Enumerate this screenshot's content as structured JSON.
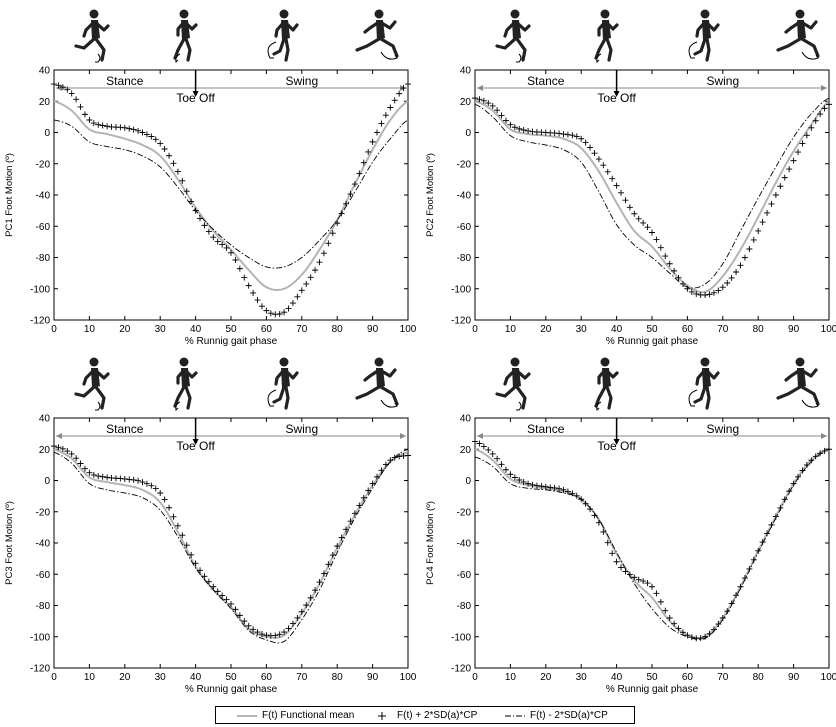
{
  "chart_data": [
    {
      "type": "line",
      "ylabel": "PC1 Foot Motion (º)",
      "xlabel": "% Runnig gait phase",
      "xlim": [
        0,
        100
      ],
      "ylim": [
        -120,
        40
      ],
      "xticks": [
        "0",
        "10",
        "20",
        "30",
        "40",
        "50",
        "60",
        "70",
        "80",
        "90",
        "100"
      ],
      "yticks": [
        "40",
        "20",
        "0",
        "-20",
        "-40",
        "-60",
        "-80",
        "-100",
        "-120"
      ],
      "phase_labels": {
        "stance": "Stance",
        "swing": "Swing",
        "toe_off": "Toe Off"
      },
      "toe_off_x": 40,
      "series": [
        {
          "name": "F(t) Functional mean",
          "style": "solid-gray",
          "x": [
            0,
            5,
            10,
            15,
            20,
            25,
            30,
            35,
            40,
            45,
            50,
            55,
            60,
            65,
            70,
            75,
            80,
            85,
            90,
            95,
            100
          ],
          "y": [
            20,
            14,
            2,
            -1,
            -4,
            -8,
            -15,
            -30,
            -48,
            -63,
            -75,
            -88,
            -99,
            -100,
            -91,
            -75,
            -56,
            -33,
            -11,
            8,
            20
          ]
        },
        {
          "name": "F(t) + 2*SD(a)*CP",
          "style": "plus",
          "x": [
            0,
            5,
            10,
            15,
            20,
            25,
            30,
            35,
            40,
            45,
            50,
            55,
            60,
            65,
            70,
            75,
            80,
            85,
            90,
            95,
            100
          ],
          "y": [
            31,
            25,
            8,
            4,
            3,
            0,
            -7,
            -25,
            -50,
            -67,
            -77,
            -98,
            -114,
            -115,
            -101,
            -83,
            -58,
            -33,
            -6,
            16,
            31
          ]
        },
        {
          "name": "F(t) - 2*SD(a)*CP",
          "style": "dashdot",
          "x": [
            0,
            5,
            10,
            15,
            20,
            25,
            30,
            35,
            40,
            45,
            50,
            55,
            60,
            65,
            70,
            75,
            80,
            85,
            90,
            95,
            100
          ],
          "y": [
            8,
            4,
            -6,
            -9,
            -11,
            -15,
            -22,
            -35,
            -50,
            -62,
            -72,
            -80,
            -86,
            -86,
            -80,
            -69,
            -56,
            -38,
            -19,
            -4,
            8
          ]
        }
      ]
    },
    {
      "type": "line",
      "ylabel": "PC2 Foot Motion (º)",
      "xlabel": "% Runnig gait phase",
      "xlim": [
        0,
        100
      ],
      "ylim": [
        -120,
        40
      ],
      "xticks": [
        "0",
        "10",
        "20",
        "30",
        "40",
        "50",
        "60",
        "70",
        "80",
        "90",
        "100"
      ],
      "yticks": [
        "40",
        "20",
        "0",
        "-20",
        "-40",
        "-60",
        "-80",
        "-100",
        "-120"
      ],
      "phase_labels": {
        "stance": "Stance",
        "swing": "Swing",
        "toe_off": "Toe Off"
      },
      "toe_off_x": 40,
      "series": [
        {
          "name": "F(t) Functional mean",
          "style": "solid-gray",
          "x": [
            0,
            5,
            10,
            15,
            20,
            25,
            30,
            35,
            40,
            45,
            50,
            55,
            60,
            65,
            70,
            75,
            80,
            85,
            90,
            95,
            100
          ],
          "y": [
            20,
            14,
            2,
            -1,
            -2,
            -4,
            -10,
            -25,
            -45,
            -63,
            -73,
            -87,
            -98,
            -102,
            -92,
            -75,
            -54,
            -32,
            -12,
            5,
            20
          ]
        },
        {
          "name": "F(t) + 2*SD(a)*CP",
          "style": "plus",
          "x": [
            0,
            5,
            10,
            15,
            20,
            25,
            30,
            35,
            40,
            45,
            50,
            55,
            60,
            65,
            70,
            75,
            80,
            85,
            90,
            95,
            100
          ],
          "y": [
            22,
            17,
            5,
            1,
            0,
            -1,
            -4,
            -17,
            -34,
            -52,
            -64,
            -84,
            -100,
            -104,
            -99,
            -85,
            -63,
            -40,
            -18,
            3,
            18
          ]
        },
        {
          "name": "F(t) - 2*SD(a)*CP",
          "style": "dashdot",
          "x": [
            0,
            5,
            10,
            15,
            20,
            25,
            30,
            35,
            40,
            45,
            50,
            55,
            60,
            65,
            70,
            75,
            80,
            85,
            90,
            95,
            100
          ],
          "y": [
            18,
            10,
            -2,
            -6,
            -8,
            -11,
            -19,
            -38,
            -59,
            -72,
            -80,
            -90,
            -99,
            -97,
            -84,
            -63,
            -42,
            -22,
            -3,
            12,
            22
          ]
        }
      ]
    },
    {
      "type": "line",
      "ylabel": "PC3 Foot Motion (º)",
      "xlabel": "% Runnig gait phase",
      "xlim": [
        0,
        100
      ],
      "ylim": [
        -120,
        40
      ],
      "xticks": [
        "0",
        "10",
        "20",
        "30",
        "40",
        "50",
        "60",
        "70",
        "80",
        "90",
        "100"
      ],
      "yticks": [
        "40",
        "20",
        "0",
        "-20",
        "-40",
        "-60",
        "-80",
        "-100",
        "-120"
      ],
      "phase_labels": {
        "stance": "Stance",
        "swing": "Swing",
        "toe_off": "Toe Off"
      },
      "toe_off_x": 40,
      "series": [
        {
          "name": "F(t) Functional mean",
          "style": "solid-gray",
          "x": [
            0,
            5,
            10,
            15,
            20,
            25,
            30,
            35,
            40,
            45,
            50,
            55,
            60,
            65,
            70,
            75,
            80,
            85,
            90,
            95,
            100
          ],
          "y": [
            20,
            14,
            2,
            -1,
            -3,
            -6,
            -14,
            -33,
            -55,
            -70,
            -81,
            -95,
            -100,
            -99,
            -85,
            -66,
            -43,
            -22,
            -3,
            12,
            18
          ]
        },
        {
          "name": "F(t) + 2*SD(a)*CP",
          "style": "plus",
          "x": [
            0,
            5,
            10,
            15,
            20,
            25,
            30,
            35,
            40,
            45,
            50,
            55,
            60,
            65,
            70,
            75,
            80,
            85,
            90,
            95,
            100
          ],
          "y": [
            22,
            17,
            5,
            2,
            1,
            -1,
            -8,
            -29,
            -53,
            -68,
            -79,
            -93,
            -99,
            -97,
            -84,
            -65,
            -42,
            -21,
            -2,
            13,
            16
          ]
        },
        {
          "name": "F(t) - 2*SD(a)*CP",
          "style": "dashdot",
          "x": [
            0,
            5,
            10,
            15,
            20,
            25,
            30,
            35,
            40,
            45,
            50,
            55,
            60,
            65,
            70,
            75,
            80,
            85,
            90,
            95,
            100
          ],
          "y": [
            18,
            11,
            -2,
            -6,
            -8,
            -11,
            -19,
            -36,
            -56,
            -70,
            -82,
            -96,
            -102,
            -103,
            -89,
            -70,
            -46,
            -24,
            -5,
            12,
            20
          ]
        }
      ]
    },
    {
      "type": "line",
      "ylabel": "PC4 Foot Motion (º)",
      "xlabel": "% Runnig gait phase",
      "xlim": [
        0,
        100
      ],
      "ylim": [
        -120,
        40
      ],
      "xticks": [
        "0",
        "10",
        "20",
        "30",
        "40",
        "50",
        "60",
        "70",
        "80",
        "90",
        "100"
      ],
      "yticks": [
        "40",
        "20",
        "0",
        "-20",
        "-40",
        "-60",
        "-80",
        "-100",
        "-120"
      ],
      "phase_labels": {
        "stance": "Stance",
        "swing": "Swing",
        "toe_off": "Toe Off"
      },
      "toe_off_x": 40,
      "series": [
        {
          "name": "F(t) Functional mean",
          "style": "solid-gray",
          "x": [
            0,
            5,
            10,
            15,
            20,
            25,
            30,
            35,
            40,
            45,
            50,
            55,
            60,
            65,
            70,
            75,
            80,
            85,
            90,
            95,
            100
          ],
          "y": [
            20,
            13,
            1,
            -3,
            -5,
            -7,
            -12,
            -25,
            -47,
            -64,
            -75,
            -90,
            -99,
            -100,
            -88,
            -68,
            -45,
            -23,
            -2,
            13,
            20
          ]
        },
        {
          "name": "F(t) + 2*SD(a)*CP",
          "style": "plus",
          "x": [
            0,
            5,
            10,
            15,
            20,
            25,
            30,
            35,
            40,
            45,
            50,
            55,
            60,
            65,
            70,
            75,
            80,
            85,
            90,
            95,
            100
          ],
          "y": [
            25,
            17,
            4,
            -2,
            -4,
            -6,
            -12,
            -27,
            -52,
            -62,
            -68,
            -88,
            -99,
            -100,
            -88,
            -68,
            -45,
            -23,
            -2,
            13,
            20
          ]
        },
        {
          "name": "F(t) - 2*SD(a)*CP",
          "style": "dashdot",
          "x": [
            0,
            5,
            10,
            15,
            20,
            25,
            30,
            35,
            40,
            45,
            50,
            55,
            60,
            65,
            70,
            75,
            80,
            85,
            90,
            95,
            100
          ],
          "y": [
            15,
            9,
            -2,
            -5,
            -6,
            -8,
            -12,
            -25,
            -46,
            -66,
            -82,
            -94,
            -100,
            -101,
            -89,
            -69,
            -46,
            -24,
            -3,
            12,
            20
          ]
        }
      ]
    }
  ],
  "legend": {
    "items": [
      {
        "label": "F(t) Functional mean",
        "style": "solid-gray"
      },
      {
        "label": "F(t) + 2*SD(a)*CP",
        "style": "plus"
      },
      {
        "label": "F(t) - 2*SD(a)*CP",
        "style": "dashdot"
      }
    ]
  },
  "colors": {
    "mean": "#b4b4b4",
    "upper": "#000000",
    "lower": "#000000",
    "runner": "#222222"
  },
  "icons": [
    "runner-silhouette-icon"
  ]
}
